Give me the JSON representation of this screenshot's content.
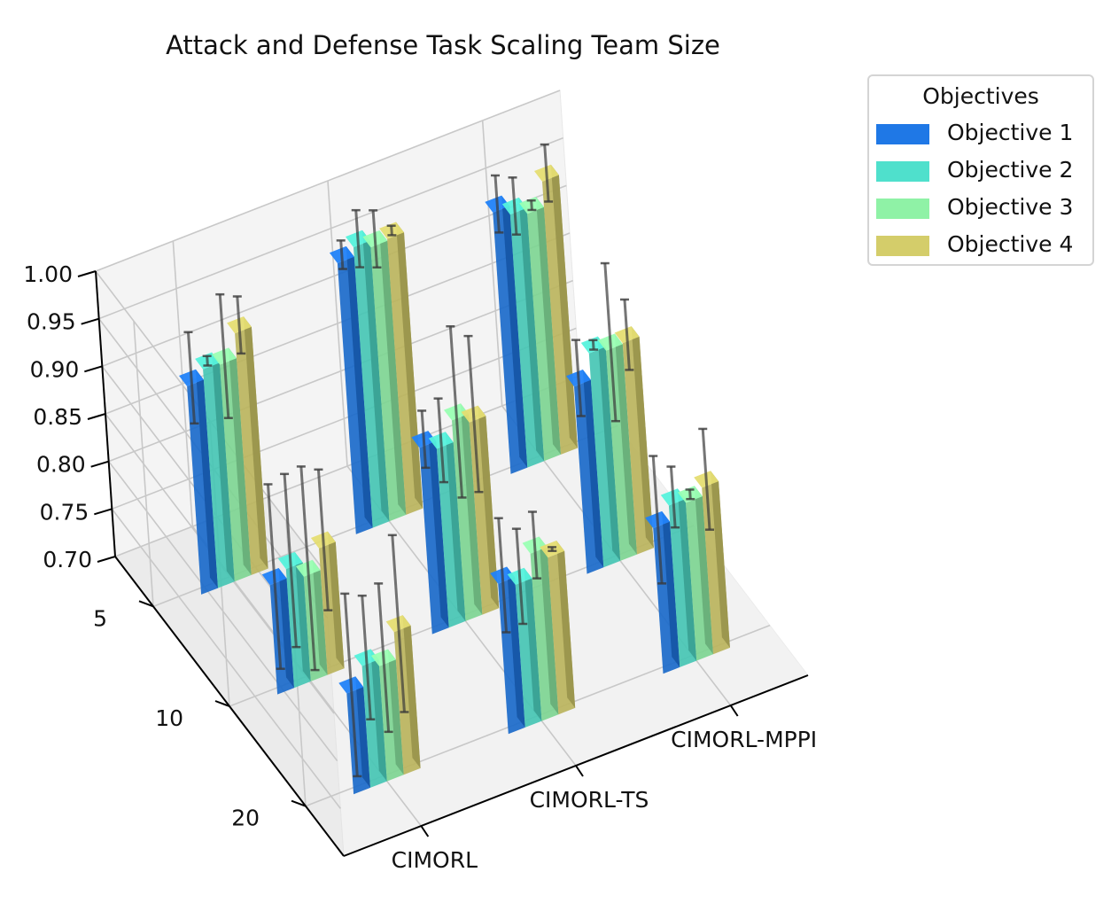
{
  "chart_data": {
    "type": "bar3d",
    "title": "Attack and Defense Task Scaling Team Size",
    "x_categories": [
      "CIMORL",
      "CIMORL-TS",
      "CIMORL-MPPI"
    ],
    "y_categories": [
      "5",
      "10",
      "20"
    ],
    "zlim": [
      0.7,
      1.0
    ],
    "z_ticks": [
      "0.70",
      "0.75",
      "0.80",
      "0.85",
      "0.90",
      "0.95",
      "1.00"
    ],
    "legend_title": "Objectives",
    "series": [
      {
        "name": "Objective 1",
        "color": "#1f78e6"
      },
      {
        "name": "Objective 2",
        "color": "#4fe0cc"
      },
      {
        "name": "Objective 3",
        "color": "#8ff2a6"
      },
      {
        "name": "Objective 4",
        "color": "#d4cd6a"
      }
    ],
    "values": {
      "CIMORL": {
        "5": {
          "means": [
            0.919,
            0.93,
            0.928,
            0.954
          ],
          "errors": [
            0.048,
            0.005,
            0.065,
            0.03
          ]
        },
        "10": {
          "means": [
            0.815,
            0.825,
            0.81,
            0.833
          ],
          "errors": [
            0.097,
            0.091,
            0.107,
            0.074
          ]
        },
        "20": {
          "means": [
            0.806,
            0.828,
            0.821,
            0.85
          ],
          "errors": [
            0.096,
            0.065,
            0.078,
            0.093
          ]
        }
      },
      "CIMORL-TS": {
        "5": {
          "means": [
            0.985,
            0.995,
            0.988,
            0.99
          ],
          "errors": [
            0.015,
            0.03,
            0.03,
            0.005
          ]
        },
        "10": {
          "means": [
            0.896,
            0.888,
            0.911,
            0.902
          ],
          "errors": [
            0.03,
            0.044,
            0.09,
            0.082
          ]
        },
        "20": {
          "means": [
            0.858,
            0.85,
            0.876,
            0.865
          ],
          "errors": [
            0.06,
            0.05,
            0.035,
            0.002
          ]
        }
      },
      "CIMORL-MPPI": {
        "5": {
          "means": [
            0.975,
            0.966,
            0.96,
            0.987
          ],
          "errors": [
            0.03,
            0.03,
            0.005,
            0.03
          ]
        },
        "10": {
          "means": [
            0.897,
            0.925,
            0.921,
            0.922
          ],
          "errors": [
            0.04,
            0.005,
            0.083,
            0.037
          ]
        },
        "20": {
          "means": [
            0.853,
            0.87,
            0.866,
            0.875
          ],
          "errors": [
            0.067,
            0.032,
            0.005,
            0.053
          ]
        }
      }
    }
  }
}
